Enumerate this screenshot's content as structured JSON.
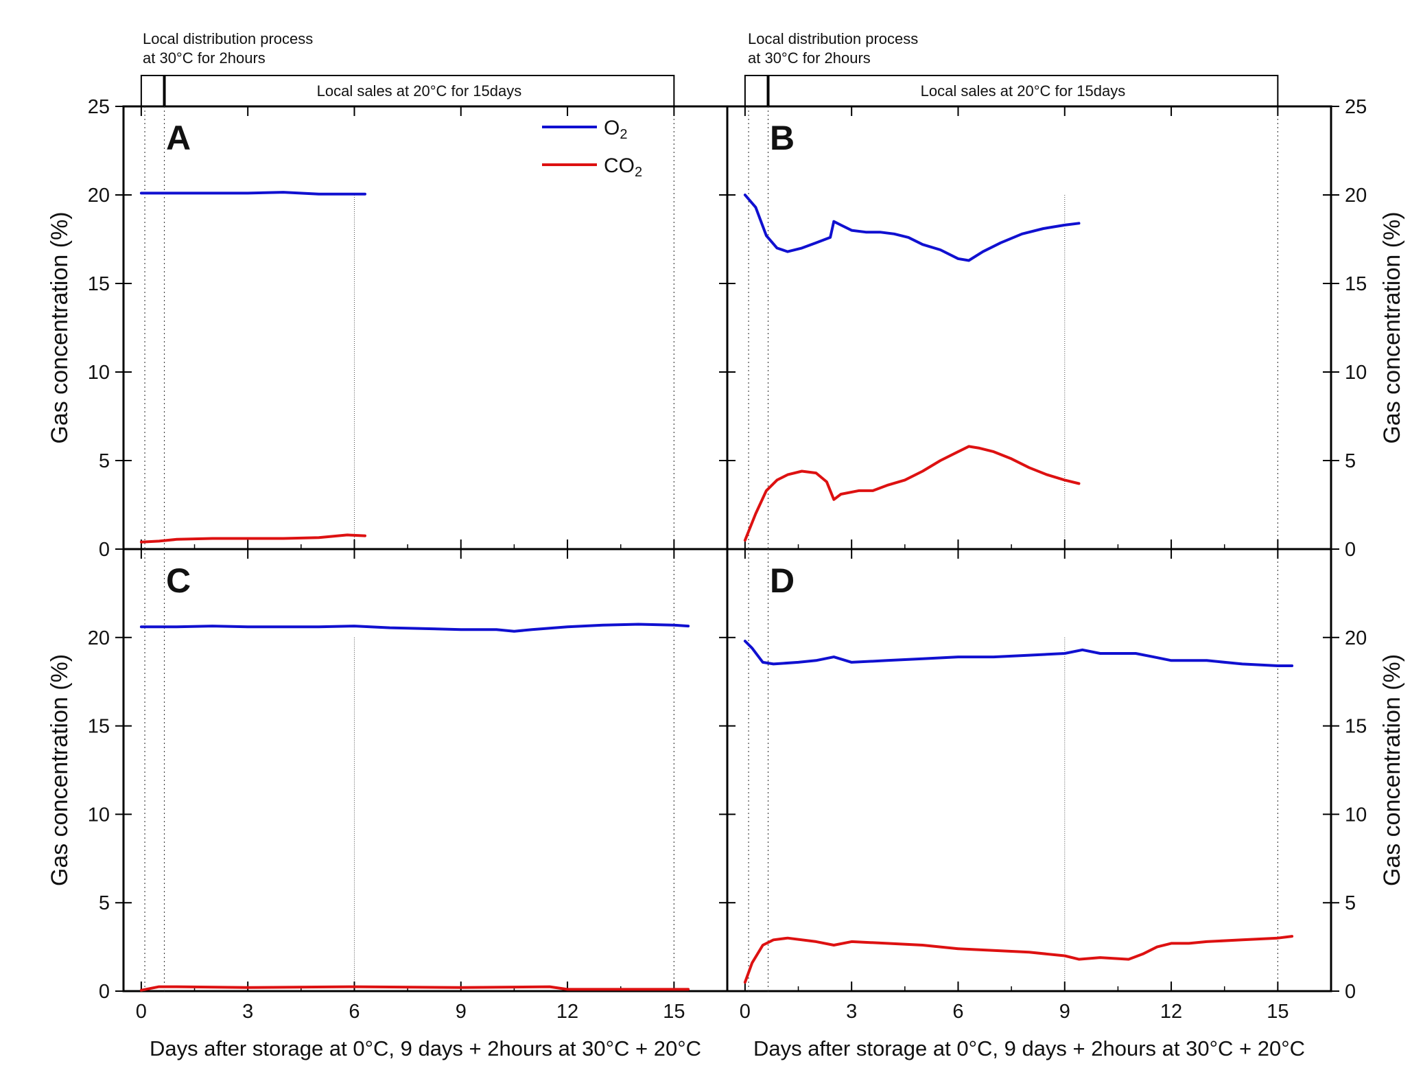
{
  "chart_data": {
    "type": "line",
    "shared": {
      "xlabel": "Days after storage at 0°C, 9 days + 2hours at 30°C + 20°C",
      "ylabel": "Gas concentration (%)",
      "xlim": [
        -0.5,
        16.5
      ],
      "ylim": [
        0,
        25
      ],
      "xticks": [
        0,
        3,
        6,
        9,
        12,
        15
      ],
      "yticks_top": [
        0,
        5,
        10,
        15,
        20,
        25
      ],
      "yticks_bottom": [
        0,
        5,
        10,
        15,
        20
      ],
      "annotations": {
        "distribution": [
          "Local distribution process",
          "at 30°C for 2hours"
        ],
        "sales": "Local sales at 20°C for 15days"
      },
      "legend": [
        {
          "name": "O",
          "sub": "2",
          "color": "#1010d0"
        },
        {
          "name": "CO",
          "sub": "2",
          "color": "#dd1111"
        }
      ]
    },
    "panels": [
      {
        "label": "A",
        "series": [
          {
            "name": "O2",
            "color": "#1010d0",
            "x": [
              0,
              0.5,
              1,
              2,
              3,
              4,
              5,
              6,
              6.3
            ],
            "y": [
              20.1,
              20.1,
              20.1,
              20.1,
              20.1,
              20.15,
              20.05,
              20.05,
              20.05
            ]
          },
          {
            "name": "CO2",
            "color": "#dd1111",
            "x": [
              0,
              0.5,
              1,
              2,
              3,
              4,
              5,
              5.8,
              6.3
            ],
            "y": [
              0.4,
              0.45,
              0.55,
              0.6,
              0.6,
              0.6,
              0.65,
              0.8,
              0.75
            ]
          }
        ]
      },
      {
        "label": "B",
        "series": [
          {
            "name": "O2",
            "color": "#1010d0",
            "x": [
              0,
              0.3,
              0.6,
              0.9,
              1.2,
              1.6,
              2.0,
              2.4,
              2.5,
              2.7,
              3.0,
              3.4,
              3.8,
              4.2,
              4.6,
              5.0,
              5.5,
              6.0,
              6.3,
              6.7,
              7.2,
              7.8,
              8.4,
              9.0,
              9.4
            ],
            "y": [
              20.0,
              19.3,
              17.7,
              17.0,
              16.8,
              17.0,
              17.3,
              17.6,
              18.5,
              18.3,
              18.0,
              17.9,
              17.9,
              17.8,
              17.6,
              17.2,
              16.9,
              16.4,
              16.3,
              16.8,
              17.3,
              17.8,
              18.1,
              18.3,
              18.4
            ]
          },
          {
            "name": "CO2",
            "color": "#dd1111",
            "x": [
              0,
              0.3,
              0.6,
              0.9,
              1.2,
              1.6,
              2.0,
              2.3,
              2.5,
              2.7,
              3.2,
              3.6,
              4.0,
              4.5,
              5.0,
              5.5,
              6.0,
              6.3,
              6.6,
              7.0,
              7.5,
              8.0,
              8.5,
              9.0,
              9.4
            ],
            "y": [
              0.5,
              2.0,
              3.3,
              3.9,
              4.2,
              4.4,
              4.3,
              3.8,
              2.8,
              3.1,
              3.3,
              3.3,
              3.6,
              3.9,
              4.4,
              5.0,
              5.5,
              5.8,
              5.7,
              5.5,
              5.1,
              4.6,
              4.2,
              3.9,
              3.7
            ]
          }
        ]
      },
      {
        "label": "C",
        "series": [
          {
            "name": "O2",
            "color": "#1010d0",
            "x": [
              0,
              1,
              2,
              3,
              4,
              5,
              6,
              7,
              8,
              9,
              10,
              10.5,
              11,
              12,
              13,
              14,
              15,
              15.4
            ],
            "y": [
              20.6,
              20.6,
              20.65,
              20.6,
              20.6,
              20.6,
              20.65,
              20.55,
              20.5,
              20.45,
              20.45,
              20.35,
              20.45,
              20.6,
              20.7,
              20.75,
              20.7,
              20.65
            ]
          },
          {
            "name": "CO2",
            "color": "#dd1111",
            "x": [
              0,
              0.5,
              1,
              3,
              6,
              9,
              11.5,
              12,
              15,
              15.4
            ],
            "y": [
              0.05,
              0.25,
              0.25,
              0.2,
              0.25,
              0.2,
              0.25,
              0.1,
              0.1,
              0.1
            ]
          }
        ]
      },
      {
        "label": "D",
        "series": [
          {
            "name": "O2",
            "color": "#1010d0",
            "x": [
              0,
              0.2,
              0.5,
              0.8,
              1.5,
              2.0,
              2.5,
              3.0,
              4.0,
              5.0,
              6.0,
              7.0,
              8.0,
              9.0,
              9.5,
              10.0,
              11.0,
              11.5,
              12.0,
              13.0,
              14.0,
              15.0,
              15.4
            ],
            "y": [
              19.8,
              19.4,
              18.6,
              18.5,
              18.6,
              18.7,
              18.9,
              18.6,
              18.7,
              18.8,
              18.9,
              18.9,
              19.0,
              19.1,
              19.3,
              19.1,
              19.1,
              18.9,
              18.7,
              18.7,
              18.5,
              18.4,
              18.4
            ]
          },
          {
            "name": "CO2",
            "color": "#dd1111",
            "x": [
              0,
              0.2,
              0.5,
              0.8,
              1.2,
              2.0,
              2.5,
              3.0,
              4.0,
              5.0,
              6.0,
              7.0,
              8.0,
              9.0,
              9.4,
              10.0,
              10.8,
              11.2,
              11.6,
              12.0,
              12.5,
              13.0,
              14.0,
              15.0,
              15.4
            ],
            "y": [
              0.5,
              1.6,
              2.6,
              2.9,
              3.0,
              2.8,
              2.6,
              2.8,
              2.7,
              2.6,
              2.4,
              2.3,
              2.2,
              2.0,
              1.8,
              1.9,
              1.8,
              2.1,
              2.5,
              2.7,
              2.7,
              2.8,
              2.9,
              3.0,
              3.1
            ]
          }
        ]
      }
    ]
  }
}
